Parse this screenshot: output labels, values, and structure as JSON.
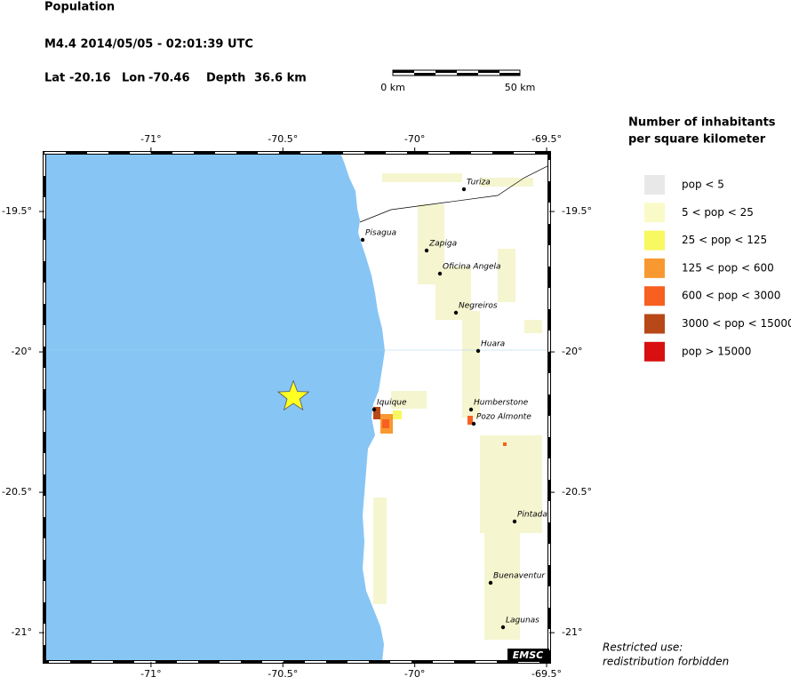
{
  "header": {
    "title": "Population",
    "event": "M4.4  2014/05/05 - 02:01:39 UTC",
    "lat_label": "Lat",
    "lat": -20.16,
    "lon_label": "Lon",
    "lon": -70.46,
    "depth_label": "Depth",
    "depth": "36.6 km"
  },
  "scale_bar": {
    "start": "0 km",
    "end": "50 km"
  },
  "map": {
    "lonlim": [
      -71.404,
      -69.49
    ],
    "latlim": [
      -21.104,
      -19.291
    ],
    "lon_ticks": [
      {
        "value": -71,
        "label": "-71°"
      },
      {
        "value": -70.5,
        "label": "-70.5°"
      },
      {
        "value": -70,
        "label": "-70°"
      },
      {
        "value": -69.5,
        "label": "-69.5°"
      }
    ],
    "lat_ticks": [
      {
        "value": -19.5,
        "label": "-19.5°"
      },
      {
        "value": -20,
        "label": "-20°"
      },
      {
        "value": -20.5,
        "label": "-20.5°"
      },
      {
        "value": -21,
        "label": "-21°"
      }
    ],
    "towns": [
      "Turiza",
      "Pisagua",
      "Zapiga",
      "Oficina Angela",
      "Negreiros",
      "Huara",
      "Iquique",
      "Humberstone",
      "Pozo Almonte",
      "Pintada",
      "Buenaventur",
      "Lagunas"
    ],
    "logo": "EMSC"
  },
  "legend": {
    "title": [
      "Number of inhabitants",
      "per square kilometer"
    ],
    "items": [
      {
        "label": "pop < 5",
        "color": "#e8e8e8"
      },
      {
        "label": "5 < pop < 25",
        "color": "#fafac8"
      },
      {
        "label": "25 < pop < 125",
        "color": "#f8f860"
      },
      {
        "label": "125 < pop < 600",
        "color": "#f89830"
      },
      {
        "label": "600 < pop < 3000",
        "color": "#f86020"
      },
      {
        "label": "3000 < pop < 15000",
        "color": "#b84818"
      },
      {
        "label": "pop > 15000",
        "color": "#d81010"
      }
    ]
  },
  "footer": [
    "Restricted use:",
    "redistribution forbidden"
  ]
}
